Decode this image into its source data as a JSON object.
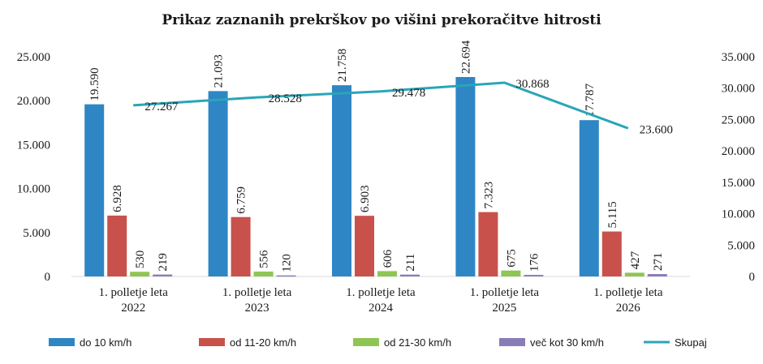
{
  "chart_data": {
    "type": "bar",
    "title": "Prikaz zaznanih prekrškov po višini prekoračitve hitrosti",
    "categories": [
      [
        "1. polletje leta",
        "2022"
      ],
      [
        "1. polletje leta",
        "2023"
      ],
      [
        "1. polletje leta",
        "2024"
      ],
      [
        "1. polletje leta",
        "2025"
      ],
      [
        "1. polletje leta",
        "2026"
      ]
    ],
    "series": [
      {
        "name": "do 10 km/h",
        "type": "bar",
        "axis": "left",
        "color": "#2f86c4",
        "values": [
          19590,
          21093,
          21758,
          22694,
          17787
        ],
        "labels": [
          "19.590",
          "21.093",
          "21.758",
          "22.694",
          "17.787"
        ]
      },
      {
        "name": "od 11-20 km/h",
        "type": "bar",
        "axis": "left",
        "color": "#c8524b",
        "values": [
          6928,
          6759,
          6903,
          7323,
          5115
        ],
        "labels": [
          "6.928",
          "6.759",
          "6.903",
          "7.323",
          "5.115"
        ]
      },
      {
        "name": "od 21-30 km/h",
        "type": "bar",
        "axis": "left",
        "color": "#8fc653",
        "values": [
          530,
          556,
          606,
          675,
          427
        ],
        "labels": [
          "530",
          "556",
          "606",
          "675",
          "427"
        ]
      },
      {
        "name": "več kot 30 km/h",
        "type": "bar",
        "axis": "left",
        "color": "#8a7cb8",
        "values": [
          219,
          120,
          211,
          176,
          271
        ],
        "labels": [
          "219",
          "120",
          "211",
          "176",
          "271"
        ]
      },
      {
        "name": "Skupaj",
        "type": "line",
        "axis": "right",
        "color": "#2aa5b8",
        "values": [
          27267,
          28528,
          29478,
          30868,
          23600
        ],
        "labels": [
          "27.267",
          "28.528",
          "29.478",
          "30.868",
          "23.600"
        ]
      }
    ],
    "y_left": {
      "min": 0,
      "max": 25000,
      "ticks": [
        "0",
        "5.000",
        "10.000",
        "15.000",
        "20.000",
        "25.000"
      ]
    },
    "y_right": {
      "min": 0,
      "max": 35000,
      "ticks": [
        "0",
        "5.000",
        "10.000",
        "15.000",
        "20.000",
        "25.000",
        "30.000",
        "35.000"
      ]
    },
    "grid": false,
    "legend_position": "bottom"
  }
}
